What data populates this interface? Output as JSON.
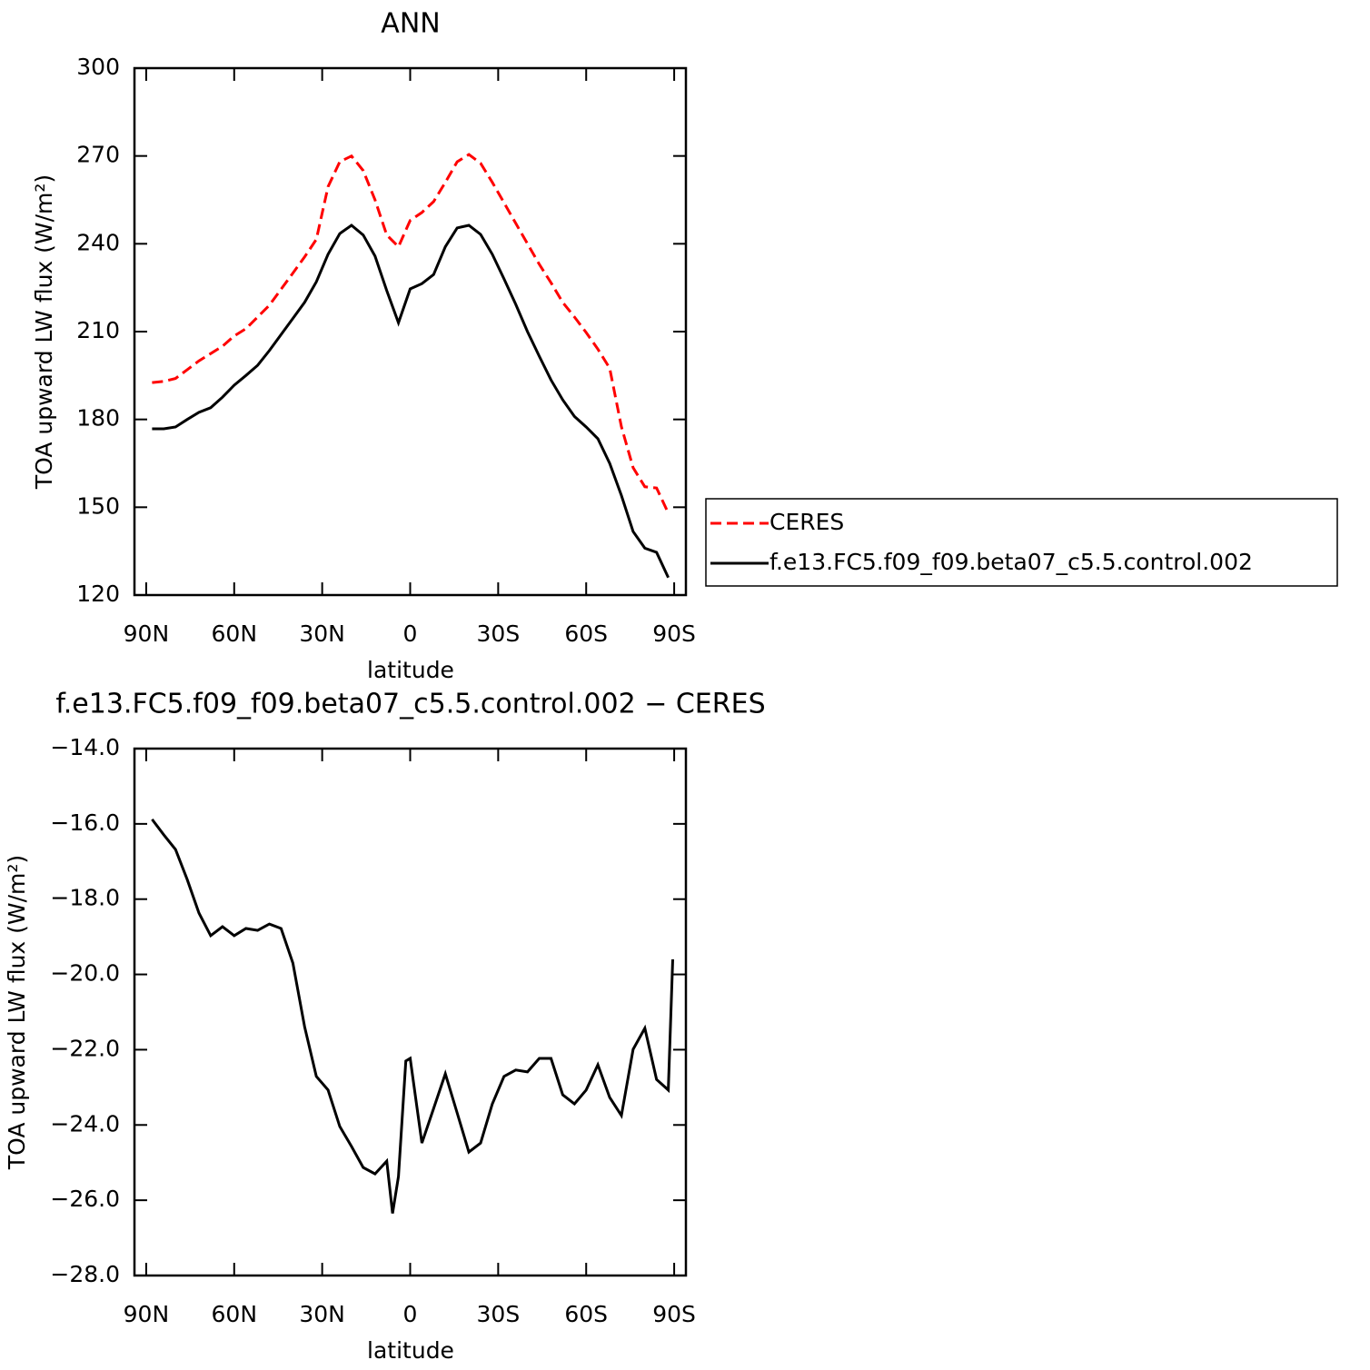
{
  "chart_data": [
    {
      "type": "line",
      "title": "ANN",
      "xlabel": "latitude",
      "ylabel": "TOA upward LW flux (W/m²)",
      "x": [
        88,
        84,
        80,
        76,
        72,
        68,
        64,
        60,
        56,
        52,
        48,
        44,
        40,
        36,
        32,
        28,
        24,
        20,
        16,
        12,
        8,
        4,
        0,
        -4,
        -8,
        -12,
        -16,
        -20,
        -24,
        -28,
        -32,
        -36,
        -40,
        -44,
        -48,
        -52,
        -56,
        -60,
        -64,
        -68,
        -72,
        -76,
        -80,
        -84,
        -88
      ],
      "series": [
        {
          "name": "CERES",
          "color": "#ff0000",
          "dash": true,
          "values": [
            192.6,
            193,
            194,
            197,
            200,
            202.5,
            205,
            208.5,
            211,
            215,
            219,
            224.5,
            230,
            235.5,
            241.5,
            259.5,
            268,
            270,
            265,
            255,
            243,
            239,
            248,
            250.7,
            254.4,
            261,
            268,
            270.5,
            267.5,
            261,
            254,
            247,
            240,
            233,
            226.7,
            220,
            215,
            209.7,
            204,
            197.5,
            177.5,
            163.5,
            157,
            156.6,
            148
          ]
        },
        {
          "name": "f.e13.FC5.f09_f09.beta07_c5.5.control.002",
          "color": "#000000",
          "dash": false,
          "values": [
            176.8,
            176.8,
            177.4,
            180,
            182.4,
            184,
            187.6,
            191.7,
            195,
            198.5,
            203.5,
            209,
            214.5,
            220,
            227,
            236.4,
            243.5,
            246.3,
            243,
            235.8,
            224,
            213,
            224.6,
            226.4,
            229.5,
            239,
            245.4,
            246.3,
            243.2,
            236.4,
            228,
            219.3,
            210,
            201.6,
            193.5,
            186.7,
            181,
            177.4,
            173.4,
            165,
            154,
            141.7,
            136,
            134.6,
            126
          ]
        }
      ],
      "xlim": [
        94,
        -94
      ],
      "xticks": [
        {
          "value": 90,
          "label": "90N"
        },
        {
          "value": 60,
          "label": "60N"
        },
        {
          "value": 30,
          "label": "30N"
        },
        0,
        {
          "value": -30,
          "label": "30S"
        },
        {
          "value": -60,
          "label": "60S"
        },
        {
          "value": -90,
          "label": "90S"
        }
      ],
      "ylim": [
        120,
        300
      ],
      "yticks": [
        120,
        150,
        180,
        210,
        240,
        270,
        300
      ],
      "legend": "right"
    },
    {
      "type": "line",
      "title": "f.e13.FC5.f09_f09.beta07_c5.5.control.002 − CERES",
      "xlabel": "latitude",
      "ylabel": "TOA upward LW flux (W/m²)",
      "x": [
        88,
        84,
        80,
        76,
        72,
        68,
        64,
        60,
        56,
        52,
        48,
        44,
        40,
        36,
        32,
        28,
        24,
        20,
        16,
        12,
        8,
        6,
        4,
        1.5,
        0,
        -4,
        -8,
        -12,
        -16,
        -20,
        -24,
        -28,
        -32,
        -36,
        -40,
        -44,
        -48,
        -52,
        -56,
        -60,
        -64,
        -68,
        -72,
        -76,
        -80,
        -84,
        -88,
        -89.5
      ],
      "series": [
        {
          "color": "#000000",
          "values": [
            -15.88,
            -16.29,
            -16.68,
            -17.48,
            -18.37,
            -18.97,
            -18.73,
            -18.97,
            -18.78,
            -18.83,
            -18.66,
            -18.78,
            -19.7,
            -21.39,
            -22.71,
            -23.07,
            -24.04,
            -24.57,
            -25.13,
            -25.3,
            -24.96,
            -26.35,
            -25.37,
            -22.3,
            -22.23,
            -24.48,
            -23.56,
            -22.64,
            -23.68,
            -24.72,
            -24.48,
            -23.44,
            -22.71,
            -22.54,
            -22.59,
            -22.23,
            -22.23,
            -23.2,
            -23.44,
            -23.07,
            -22.4,
            -23.27,
            -23.75,
            -21.99,
            -21.43,
            -22.79,
            -23.07,
            -19.6
          ]
        }
      ],
      "xlim": [
        94,
        -94
      ],
      "xticks": [
        {
          "value": 90,
          "label": "90N"
        },
        {
          "value": 60,
          "label": "60N"
        },
        {
          "value": 30,
          "label": "30N"
        },
        0,
        {
          "value": -30,
          "label": "30S"
        },
        {
          "value": -60,
          "label": "60S"
        },
        {
          "value": -90,
          "label": "90S"
        }
      ],
      "ylim": [
        -28,
        -14
      ],
      "yticks": [
        {
          "value": -28,
          "label": "−28.0"
        },
        {
          "value": -26,
          "label": "−26.0"
        },
        {
          "value": -24,
          "label": "−24.0"
        },
        {
          "value": -22,
          "label": "−22.0"
        },
        {
          "value": -20,
          "label": "−20.0"
        },
        {
          "value": -18,
          "label": "−18.0"
        },
        {
          "value": -16,
          "label": "−16.0"
        },
        {
          "value": -14,
          "label": "−14.0"
        }
      ]
    }
  ]
}
